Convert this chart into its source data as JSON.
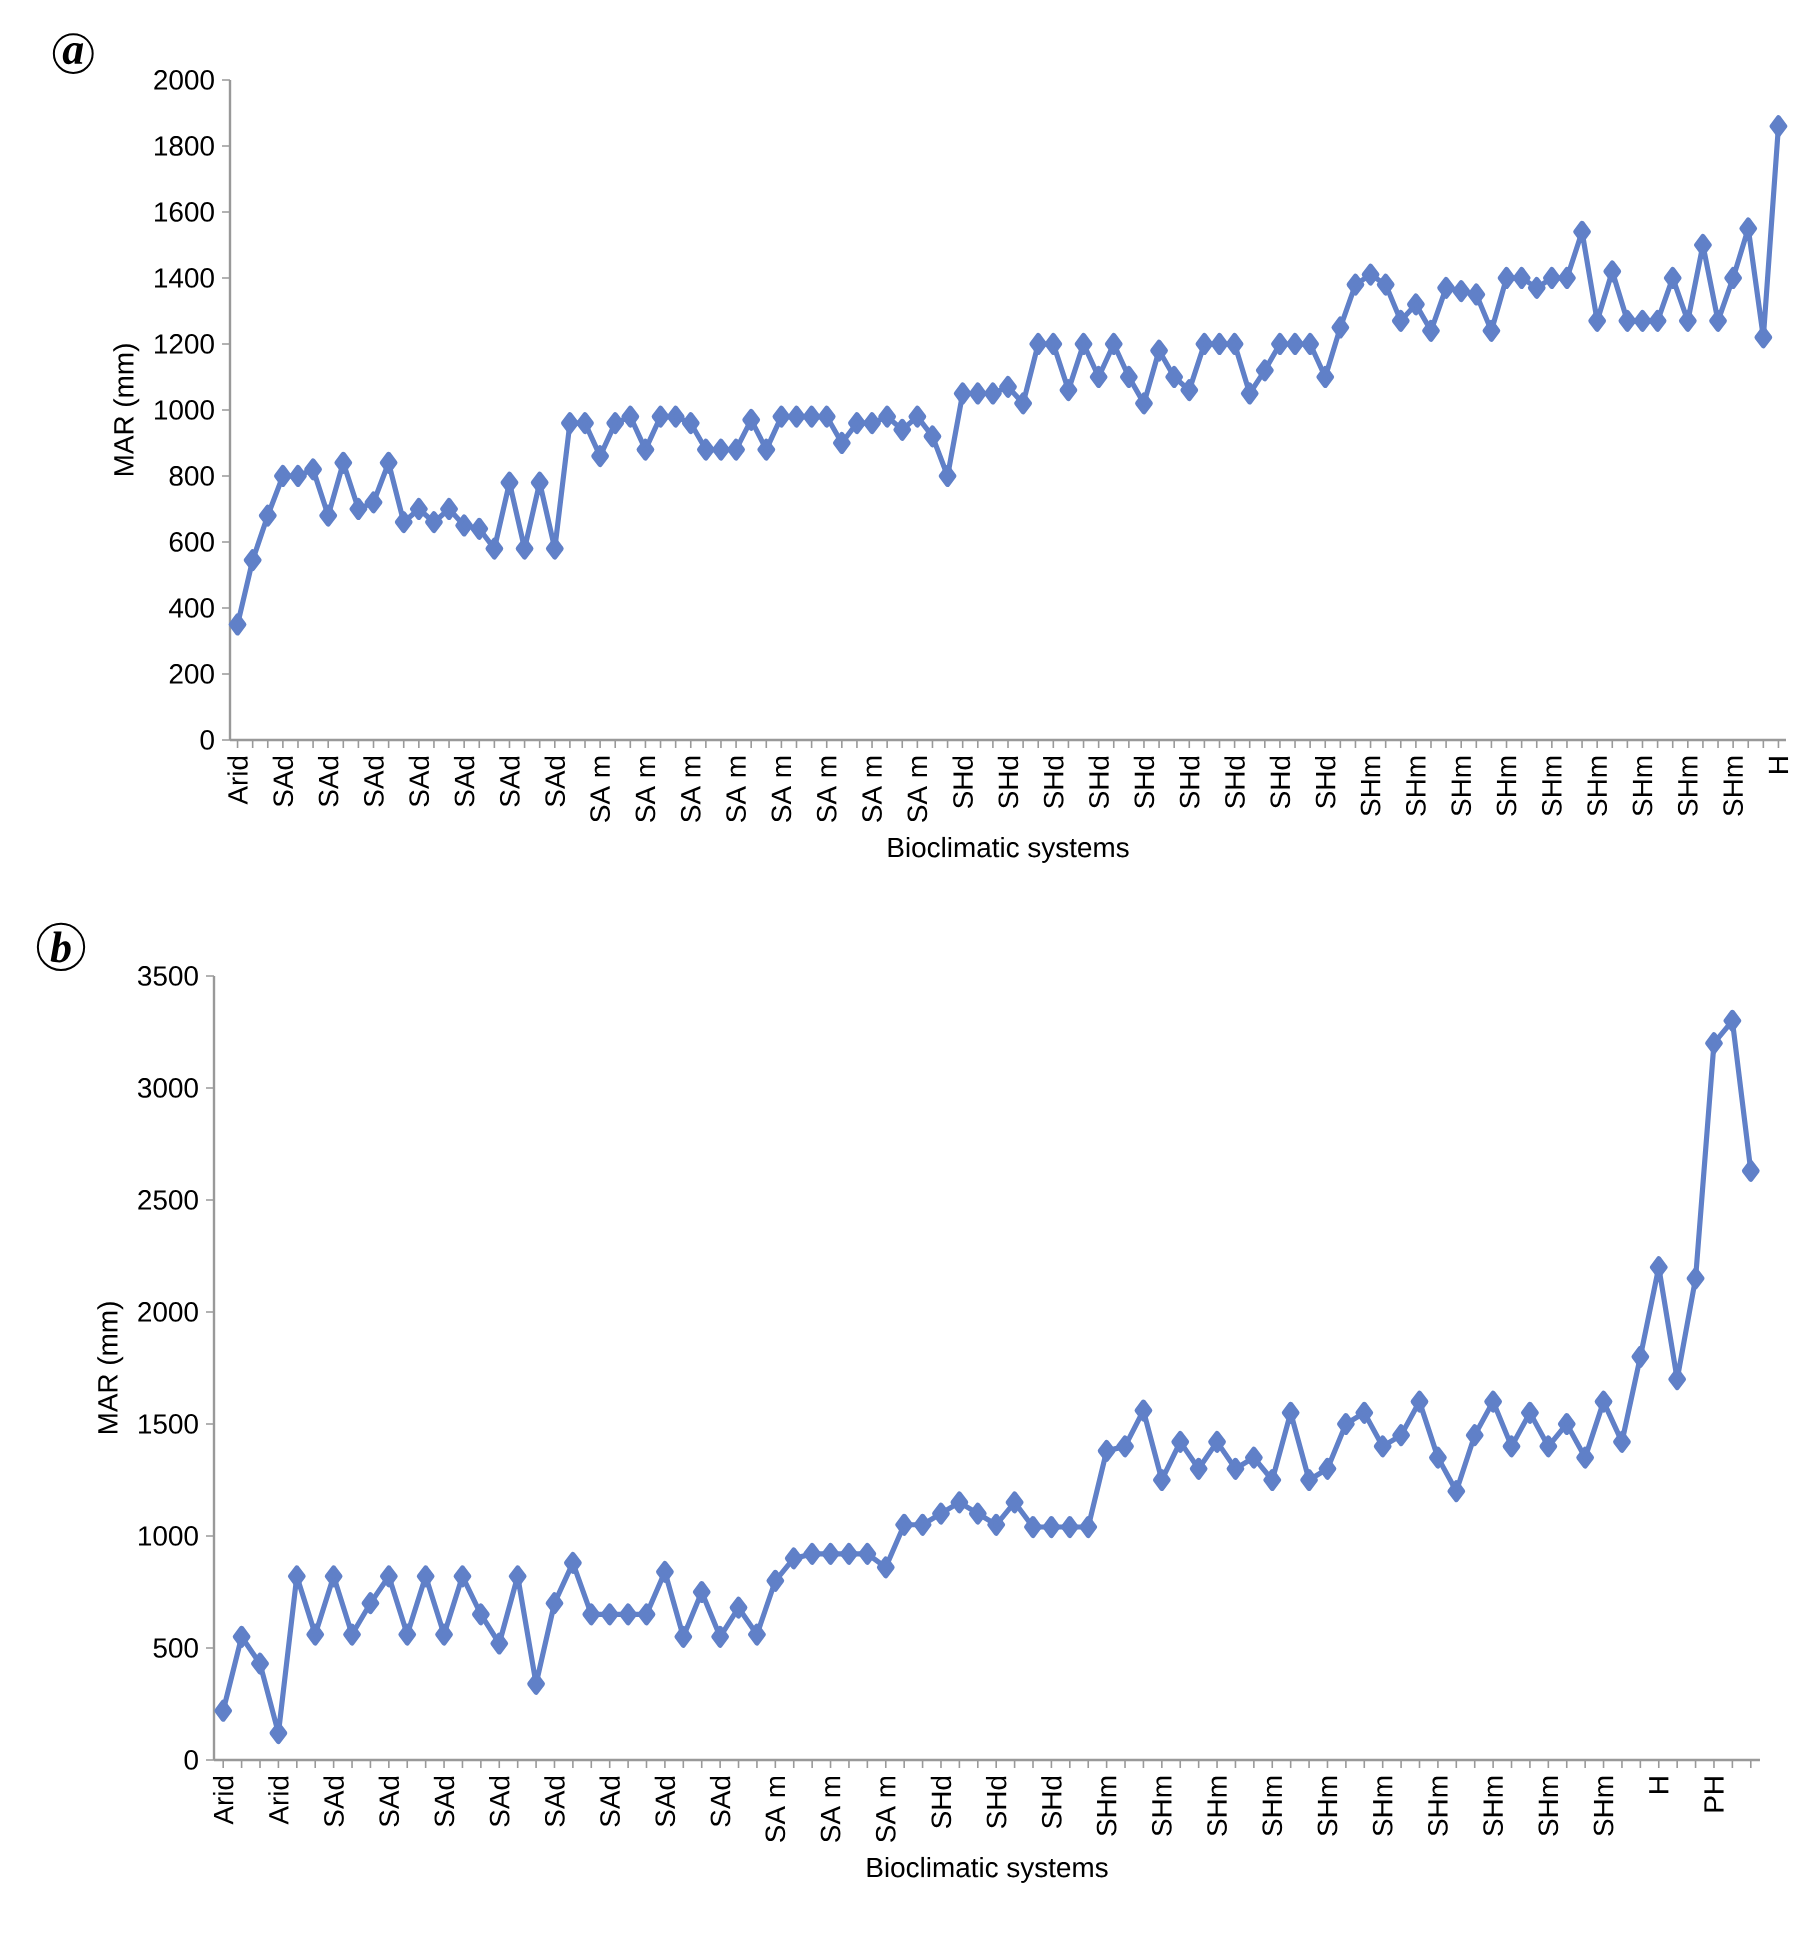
{
  "chart_data": [
    {
      "type": "line",
      "title": "a",
      "xlabel": "Bioclimatic systems",
      "ylabel": "MAR (mm)",
      "color": "#6080c8",
      "marker": "diamond",
      "line_style": "solid",
      "categories": [
        "Arid",
        null,
        null,
        "SAd",
        null,
        null,
        "SAd",
        null,
        null,
        "SAd",
        null,
        null,
        "SAd",
        null,
        null,
        "SAd",
        null,
        null,
        "SAd",
        null,
        null,
        "SAd",
        null,
        null,
        "SA m",
        null,
        null,
        "SA m",
        null,
        null,
        "SA m",
        null,
        null,
        "SA m",
        null,
        null,
        "SA m",
        null,
        null,
        "SA m",
        null,
        null,
        "SA m",
        null,
        null,
        "SA m",
        null,
        null,
        "SHd",
        null,
        null,
        "SHd",
        null,
        null,
        "SHd",
        null,
        null,
        "SHd",
        null,
        null,
        "SHd",
        null,
        null,
        "SHd",
        null,
        null,
        "SHd",
        null,
        null,
        "SHd",
        null,
        null,
        "SHd",
        null,
        null,
        "SHm",
        null,
        null,
        "SHm",
        null,
        null,
        "SHm",
        null,
        null,
        "SHm",
        null,
        null,
        "SHm",
        null,
        null,
        "SHm",
        null,
        null,
        "SHm",
        null,
        null,
        "SHm",
        null,
        null,
        "SHm",
        null,
        null,
        "H"
      ],
      "values": [
        350,
        545,
        680,
        800,
        800,
        820,
        680,
        840,
        700,
        720,
        840,
        660,
        700,
        660,
        700,
        650,
        640,
        580,
        780,
        580,
        780,
        580,
        960,
        960,
        860,
        960,
        980,
        880,
        980,
        980,
        960,
        880,
        880,
        880,
        970,
        880,
        980,
        980,
        980,
        980,
        900,
        960,
        960,
        980,
        940,
        980,
        920,
        800,
        1050,
        1050,
        1050,
        1070,
        1020,
        1200,
        1200,
        1060,
        1200,
        1100,
        1200,
        1100,
        1020,
        1180,
        1100,
        1060,
        1200,
        1200,
        1200,
        1050,
        1120,
        1200,
        1200,
        1200,
        1100,
        1250,
        1380,
        1410,
        1380,
        1270,
        1320,
        1240,
        1370,
        1360,
        1350,
        1240,
        1400,
        1400,
        1370,
        1400,
        1400,
        1540,
        1270,
        1420,
        1270,
        1270,
        1270,
        1400,
        1270,
        1500,
        1270,
        1400,
        1550,
        1220,
        1860
      ],
      "ylim": [
        0,
        2000
      ],
      "yticks": [
        0,
        200,
        400,
        600,
        800,
        1000,
        1200,
        1400,
        1600,
        1800,
        2000
      ]
    },
    {
      "type": "line",
      "title": "b",
      "xlabel": "Bioclimatic systems",
      "ylabel": "MAR (mm)",
      "color": "#6080c8",
      "marker": "diamond",
      "line_style": "solid",
      "categories": [
        "Arid",
        null,
        null,
        "Arid",
        null,
        null,
        "SAd",
        null,
        null,
        "SAd",
        null,
        null,
        "SAd",
        null,
        null,
        "SAd",
        null,
        null,
        "SAd",
        null,
        null,
        "SAd",
        null,
        null,
        "SAd",
        null,
        null,
        "SAd",
        null,
        null,
        "SA m",
        null,
        null,
        "SA m",
        null,
        null,
        "SA m",
        null,
        null,
        "SHd",
        null,
        null,
        "SHd",
        null,
        null,
        "SHd",
        null,
        null,
        "SHm",
        null,
        null,
        "SHm",
        null,
        null,
        "SHm",
        null,
        null,
        "SHm",
        null,
        null,
        "SHm",
        null,
        null,
        "SHm",
        null,
        null,
        "SHm",
        null,
        null,
        "SHm",
        null,
        null,
        "SHm",
        null,
        null,
        "SHm",
        null,
        null,
        "H",
        null,
        null,
        "PH",
        null,
        null
      ],
      "values": [
        220,
        550,
        430,
        120,
        820,
        560,
        820,
        560,
        700,
        820,
        560,
        820,
        560,
        820,
        650,
        520,
        820,
        340,
        700,
        880,
        650,
        650,
        650,
        650,
        840,
        550,
        750,
        550,
        680,
        560,
        800,
        900,
        920,
        920,
        920,
        920,
        860,
        1050,
        1050,
        1100,
        1150,
        1100,
        1050,
        1150,
        1040,
        1040,
        1040,
        1040,
        1380,
        1400,
        1560,
        1250,
        1420,
        1300,
        1420,
        1300,
        1350,
        1250,
        1550,
        1250,
        1300,
        1500,
        1550,
        1400,
        1450,
        1600,
        1350,
        1200,
        1450,
        1600,
        1400,
        1550,
        1400,
        1500,
        1350,
        1600,
        1420,
        1800,
        2200,
        1700,
        2150,
        3200,
        3300,
        2630
      ],
      "ylim": [
        0,
        3500
      ],
      "yticks": [
        0,
        500,
        1000,
        1500,
        2000,
        2500,
        3000,
        3500
      ]
    }
  ]
}
